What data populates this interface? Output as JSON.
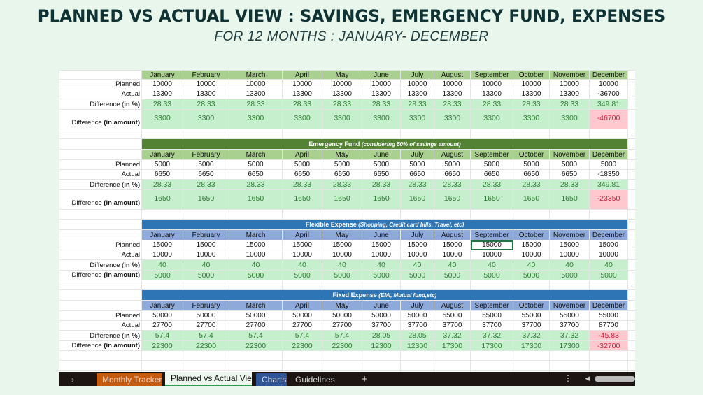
{
  "title": "PLANNED VS ACTUAL VIEW : SAVINGS, EMERGENCY FUND, EXPENSES",
  "subtitle": "FOR 12 MONTHS : JANUARY- DECEMBER",
  "months": [
    "January",
    "February",
    "March",
    "April",
    "May",
    "June",
    "July",
    "August",
    "September",
    "October",
    "November",
    "December"
  ],
  "labels": {
    "planned": "Planned",
    "actual": "Actual",
    "diff_pct_a": "Difference (",
    "diff_pct_b": "in %",
    "diff_pct_c": ")",
    "diff_amt_a": "Difference ",
    "diff_amt_b": "(in amount)"
  },
  "sections": [
    {
      "title": "",
      "note": "",
      "theme": "green",
      "tall": true,
      "planned": [
        "10000",
        "10000",
        "10000",
        "10000",
        "10000",
        "10000",
        "10000",
        "10000",
        "10000",
        "10000",
        "10000",
        "10000"
      ],
      "actual": [
        "13300",
        "13300",
        "13300",
        "13300",
        "13300",
        "13300",
        "13300",
        "13300",
        "13300",
        "13300",
        "13300",
        "-36700"
      ],
      "diff_pct": [
        "28.33",
        "28.33",
        "28.33",
        "28.33",
        "28.33",
        "28.33",
        "28.33",
        "28.33",
        "28.33",
        "28.33",
        "28.33",
        "349.81"
      ],
      "diff_amt": [
        "3300",
        "3300",
        "3300",
        "3300",
        "3300",
        "3300",
        "3300",
        "3300",
        "3300",
        "3300",
        "3300",
        "-46700"
      ],
      "neg_pct": [],
      "neg_amt": [
        11
      ]
    },
    {
      "title": "Emergency Fund ",
      "note": "(considering 50% of savings amount)",
      "theme": "green",
      "tall": true,
      "planned": [
        "5000",
        "5000",
        "5000",
        "5000",
        "5000",
        "5000",
        "5000",
        "5000",
        "5000",
        "5000",
        "5000",
        "5000"
      ],
      "actual": [
        "6650",
        "6650",
        "6650",
        "6650",
        "6650",
        "6650",
        "6650",
        "6650",
        "6650",
        "6650",
        "6650",
        "-18350"
      ],
      "diff_pct": [
        "28.33",
        "28.33",
        "28.33",
        "28.33",
        "28.33",
        "28.33",
        "28.33",
        "28.33",
        "28.33",
        "28.33",
        "28.33",
        "349.81"
      ],
      "diff_amt": [
        "1650",
        "1650",
        "1650",
        "1650",
        "1650",
        "1650",
        "1650",
        "1650",
        "1650",
        "1650",
        "1650",
        "-23350"
      ],
      "neg_pct": [],
      "neg_amt": [
        11
      ]
    },
    {
      "title": "Flexible Expense ",
      "note": "(Shopping, Credit card bills, Travel, etc)",
      "theme": "blue",
      "tall": false,
      "selected": 8,
      "planned": [
        "15000",
        "15000",
        "15000",
        "15000",
        "15000",
        "15000",
        "15000",
        "15000",
        "15000",
        "15000",
        "15000",
        "15000"
      ],
      "actual": [
        "10000",
        "10000",
        "10000",
        "10000",
        "10000",
        "10000",
        "10000",
        "10000",
        "10000",
        "10000",
        "10000",
        "10000"
      ],
      "diff_pct": [
        "40",
        "40",
        "40",
        "40",
        "40",
        "40",
        "40",
        "40",
        "40",
        "40",
        "40",
        "40"
      ],
      "diff_amt": [
        "5000",
        "5000",
        "5000",
        "5000",
        "5000",
        "5000",
        "5000",
        "5000",
        "5000",
        "5000",
        "5000",
        "5000"
      ],
      "neg_pct": [],
      "neg_amt": []
    },
    {
      "title": "Fixed Expense ",
      "note": "(EMI, Mutual fund,etc)",
      "theme": "blue",
      "tall": false,
      "planned": [
        "50000",
        "50000",
        "50000",
        "50000",
        "50000",
        "50000",
        "50000",
        "55000",
        "55000",
        "55000",
        "55000",
        "55000"
      ],
      "actual": [
        "27700",
        "27700",
        "27700",
        "27700",
        "27700",
        "37700",
        "37700",
        "37700",
        "37700",
        "37700",
        "37700",
        "87700"
      ],
      "diff_pct": [
        "57.4",
        "57.4",
        "57.4",
        "57.4",
        "57.4",
        "28.05",
        "28.05",
        "37.32",
        "37.32",
        "37.32",
        "37.32",
        "-45.83"
      ],
      "diff_amt": [
        "22300",
        "22300",
        "22300",
        "22300",
        "22300",
        "12300",
        "12300",
        "17300",
        "17300",
        "17300",
        "17300",
        "-32700"
      ],
      "neg_pct": [
        11
      ],
      "neg_amt": [
        11
      ]
    }
  ],
  "tabs": {
    "nav": "›",
    "monthly": "Monthly Tracker",
    "pva": "Planned vs Actual View",
    "charts": "Charts",
    "guidelines": "Guidelines",
    "add": "+",
    "more": "⋮",
    "scroll_left": "◀"
  }
}
